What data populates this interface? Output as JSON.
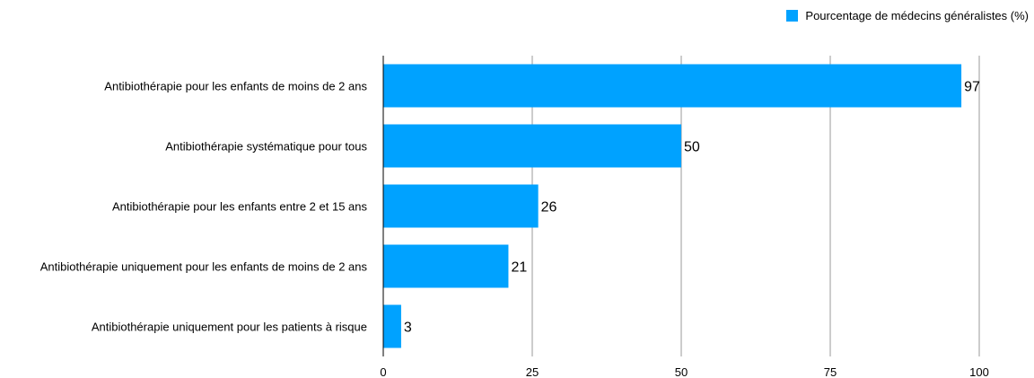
{
  "chart_data": {
    "type": "bar",
    "orientation": "horizontal",
    "categories": [
      "Antibiothérapie pour les enfants de moins de 2 ans",
      "Antibiothérapie systématique pour tous",
      "Antibiothérapie pour les enfants entre 2 et 15 ans",
      "Antibiothérapie uniquement pour les enfants de moins de 2 ans",
      "Antibiothérapie uniquement pour les patients à risque"
    ],
    "series": [
      {
        "name": "Pourcentage de médecins généralistes (%)",
        "values": [
          97,
          50,
          26,
          21,
          3
        ],
        "color": "#00a2ff"
      }
    ],
    "xlim": [
      0,
      100
    ],
    "xticks": [
      0,
      25,
      50,
      75,
      100
    ],
    "grid": "vertical",
    "legend_position": "top-right",
    "data_labels": true
  }
}
